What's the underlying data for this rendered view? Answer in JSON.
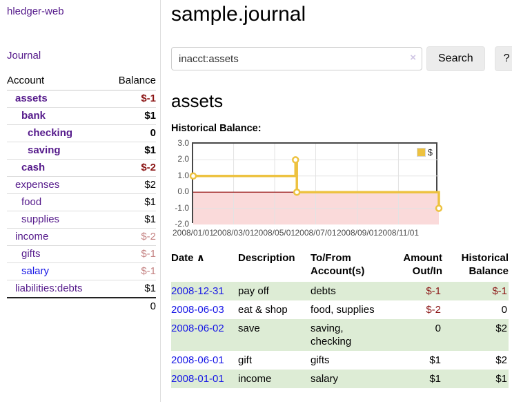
{
  "app": {
    "title": "hledger-web"
  },
  "sidebar": {
    "nav_journal": "Journal",
    "accounts_table": {
      "headers": {
        "account": "Account",
        "balance": "Balance"
      },
      "rows": [
        {
          "name": "assets",
          "balance": "$-1",
          "indent": 1,
          "bold": true,
          "neg": "strong"
        },
        {
          "name": "bank",
          "balance": "$1",
          "indent": 2,
          "bold": true,
          "neg": "none"
        },
        {
          "name": "checking",
          "balance": "0",
          "indent": 3,
          "bold": true,
          "neg": "none"
        },
        {
          "name": "saving",
          "balance": "$1",
          "indent": 3,
          "bold": true,
          "neg": "none"
        },
        {
          "name": "cash",
          "balance": "$-2",
          "indent": 2,
          "bold": true,
          "neg": "strong"
        },
        {
          "name": "expenses",
          "balance": "$2",
          "indent": 1,
          "bold": false,
          "neg": "none"
        },
        {
          "name": "food",
          "balance": "$1",
          "indent": 2,
          "bold": false,
          "neg": "none"
        },
        {
          "name": "supplies",
          "balance": "$1",
          "indent": 2,
          "bold": false,
          "neg": "none"
        },
        {
          "name": "income",
          "balance": "$-2",
          "indent": 1,
          "bold": false,
          "neg": "muted"
        },
        {
          "name": "gifts",
          "balance": "$-1",
          "indent": 2,
          "bold": false,
          "neg": "muted"
        },
        {
          "name": "salary",
          "balance": "$-1",
          "indent": 2,
          "bold": false,
          "neg": "muted",
          "link_color": "blue"
        },
        {
          "name": "liabilities:debts",
          "balance": "$1",
          "indent": 1,
          "bold": false,
          "neg": "none"
        }
      ],
      "total": "0"
    }
  },
  "header": {
    "title": "sample.journal"
  },
  "search": {
    "value": "inacct:assets",
    "clear_icon": "×",
    "button_label": "Search",
    "help_label": "?"
  },
  "account_page": {
    "heading": "assets"
  },
  "chart_data": {
    "type": "line",
    "title": "Historical Balance:",
    "x_type": "date",
    "x_range": [
      "2008-01-01",
      "2008-12-31"
    ],
    "xtick_labels": [
      "2008/01/01",
      "2008/03/01",
      "2008/05/01",
      "2008/07/01",
      "2008/09/01",
      "2008/11/01"
    ],
    "yticks": [
      "3.0",
      "2.0",
      "1.0",
      "0.0",
      "-1.0",
      "-2.0"
    ],
    "ylim": [
      -2,
      3
    ],
    "grid": true,
    "legend_position": "top-right",
    "negative_region_color": "#fadada",
    "zero_line_color": "#8b0000",
    "series": [
      {
        "name": "$",
        "color": "#edc240",
        "step": "after",
        "points": [
          [
            "2008-01-01",
            1
          ],
          [
            "2008-06-01",
            2
          ],
          [
            "2008-06-03",
            0
          ],
          [
            "2008-12-31",
            -1
          ]
        ]
      }
    ]
  },
  "register": {
    "headers": {
      "date": "Date",
      "sort_icon": "∧",
      "description": "Description",
      "tofrom_line1": "To/From",
      "tofrom_line2": "Account(s)",
      "amount_line1": "Amount",
      "amount_line2": "Out/In",
      "balance_line1": "Historical",
      "balance_line2": "Balance"
    },
    "rows": [
      {
        "date": "2008-12-31",
        "description": "pay off",
        "accounts": "debts",
        "amount": "$-1",
        "balance": "$-1",
        "amount_neg": true,
        "balance_neg": true
      },
      {
        "date": "2008-06-03",
        "description": "eat & shop",
        "accounts": "food, supplies",
        "amount": "$-2",
        "balance": "0",
        "amount_neg": true,
        "balance_neg": false
      },
      {
        "date": "2008-06-02",
        "description": "save",
        "accounts": "saving, checking",
        "amount": "0",
        "balance": "$2",
        "amount_neg": false,
        "balance_neg": false
      },
      {
        "date": "2008-06-01",
        "description": "gift",
        "accounts": "gifts",
        "amount": "$1",
        "balance": "$2",
        "amount_neg": false,
        "balance_neg": false
      },
      {
        "date": "2008-01-01",
        "description": "income",
        "accounts": "salary",
        "amount": "$1",
        "balance": "$1",
        "amount_neg": false,
        "balance_neg": false
      }
    ]
  },
  "colors": {
    "link_visited_purple": "#551a8b",
    "link_blue": "#1717e6",
    "negative_strong": "#8b1515",
    "negative_muted": "#c48282",
    "table_stripe_green": "#ddecd5",
    "chart_gold": "#edc240",
    "chart_negative_pink": "#fadada",
    "chart_zero_line": "#8b0000"
  }
}
